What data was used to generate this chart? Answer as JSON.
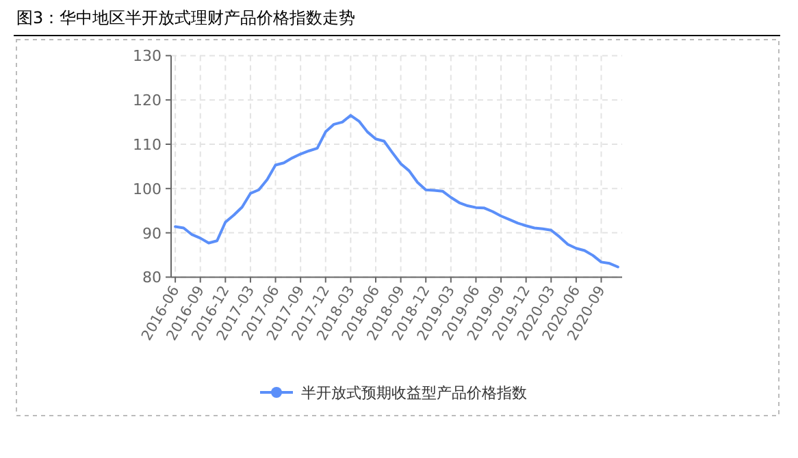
{
  "chart_data": {
    "type": "line",
    "title": "图3：华中地区半开放式理财产品价格指数走势",
    "categories": [
      "2016-06",
      null,
      null,
      "2016-09",
      null,
      null,
      "2016-12",
      null,
      null,
      "2017-03",
      null,
      null,
      "2017-06",
      null,
      null,
      "2017-09",
      null,
      null,
      "2017-12",
      null,
      null,
      "2018-03",
      null,
      null,
      "2018-06",
      null,
      null,
      "2018-09",
      null,
      null,
      "2018-12",
      null,
      null,
      "2019-03",
      null,
      null,
      "2019-06",
      null,
      null,
      "2019-09",
      null,
      null,
      "2019-12",
      null,
      null,
      "2020-03",
      null,
      null,
      "2020-06",
      null,
      null,
      "2020-09",
      null,
      null
    ],
    "series": [
      {
        "name": "半开放式预期收益型产品价格指数",
        "color": "#5b8ff9",
        "values": [
          91.4,
          91.1,
          89.6,
          88.8,
          87.7,
          88.2,
          92.4,
          94.0,
          95.8,
          98.9,
          99.7,
          102.0,
          105.3,
          105.8,
          106.9,
          107.8,
          108.5,
          109.1,
          112.8,
          114.5,
          115.0,
          116.5,
          115.2,
          112.8,
          111.2,
          110.7,
          108.1,
          105.6,
          104.0,
          101.4,
          99.7,
          99.6,
          99.4,
          98.0,
          96.8,
          96.1,
          95.7,
          95.6,
          94.8,
          93.8,
          93.0,
          92.2,
          91.6,
          91.1,
          90.9,
          90.6,
          89.1,
          87.4,
          86.5,
          86.0,
          84.9,
          83.4,
          83.1,
          82.3
        ]
      }
    ],
    "ylim": [
      80,
      130
    ],
    "yticks": [
      80,
      90,
      100,
      110,
      120,
      130
    ],
    "grid": true,
    "legend": "bottom"
  }
}
